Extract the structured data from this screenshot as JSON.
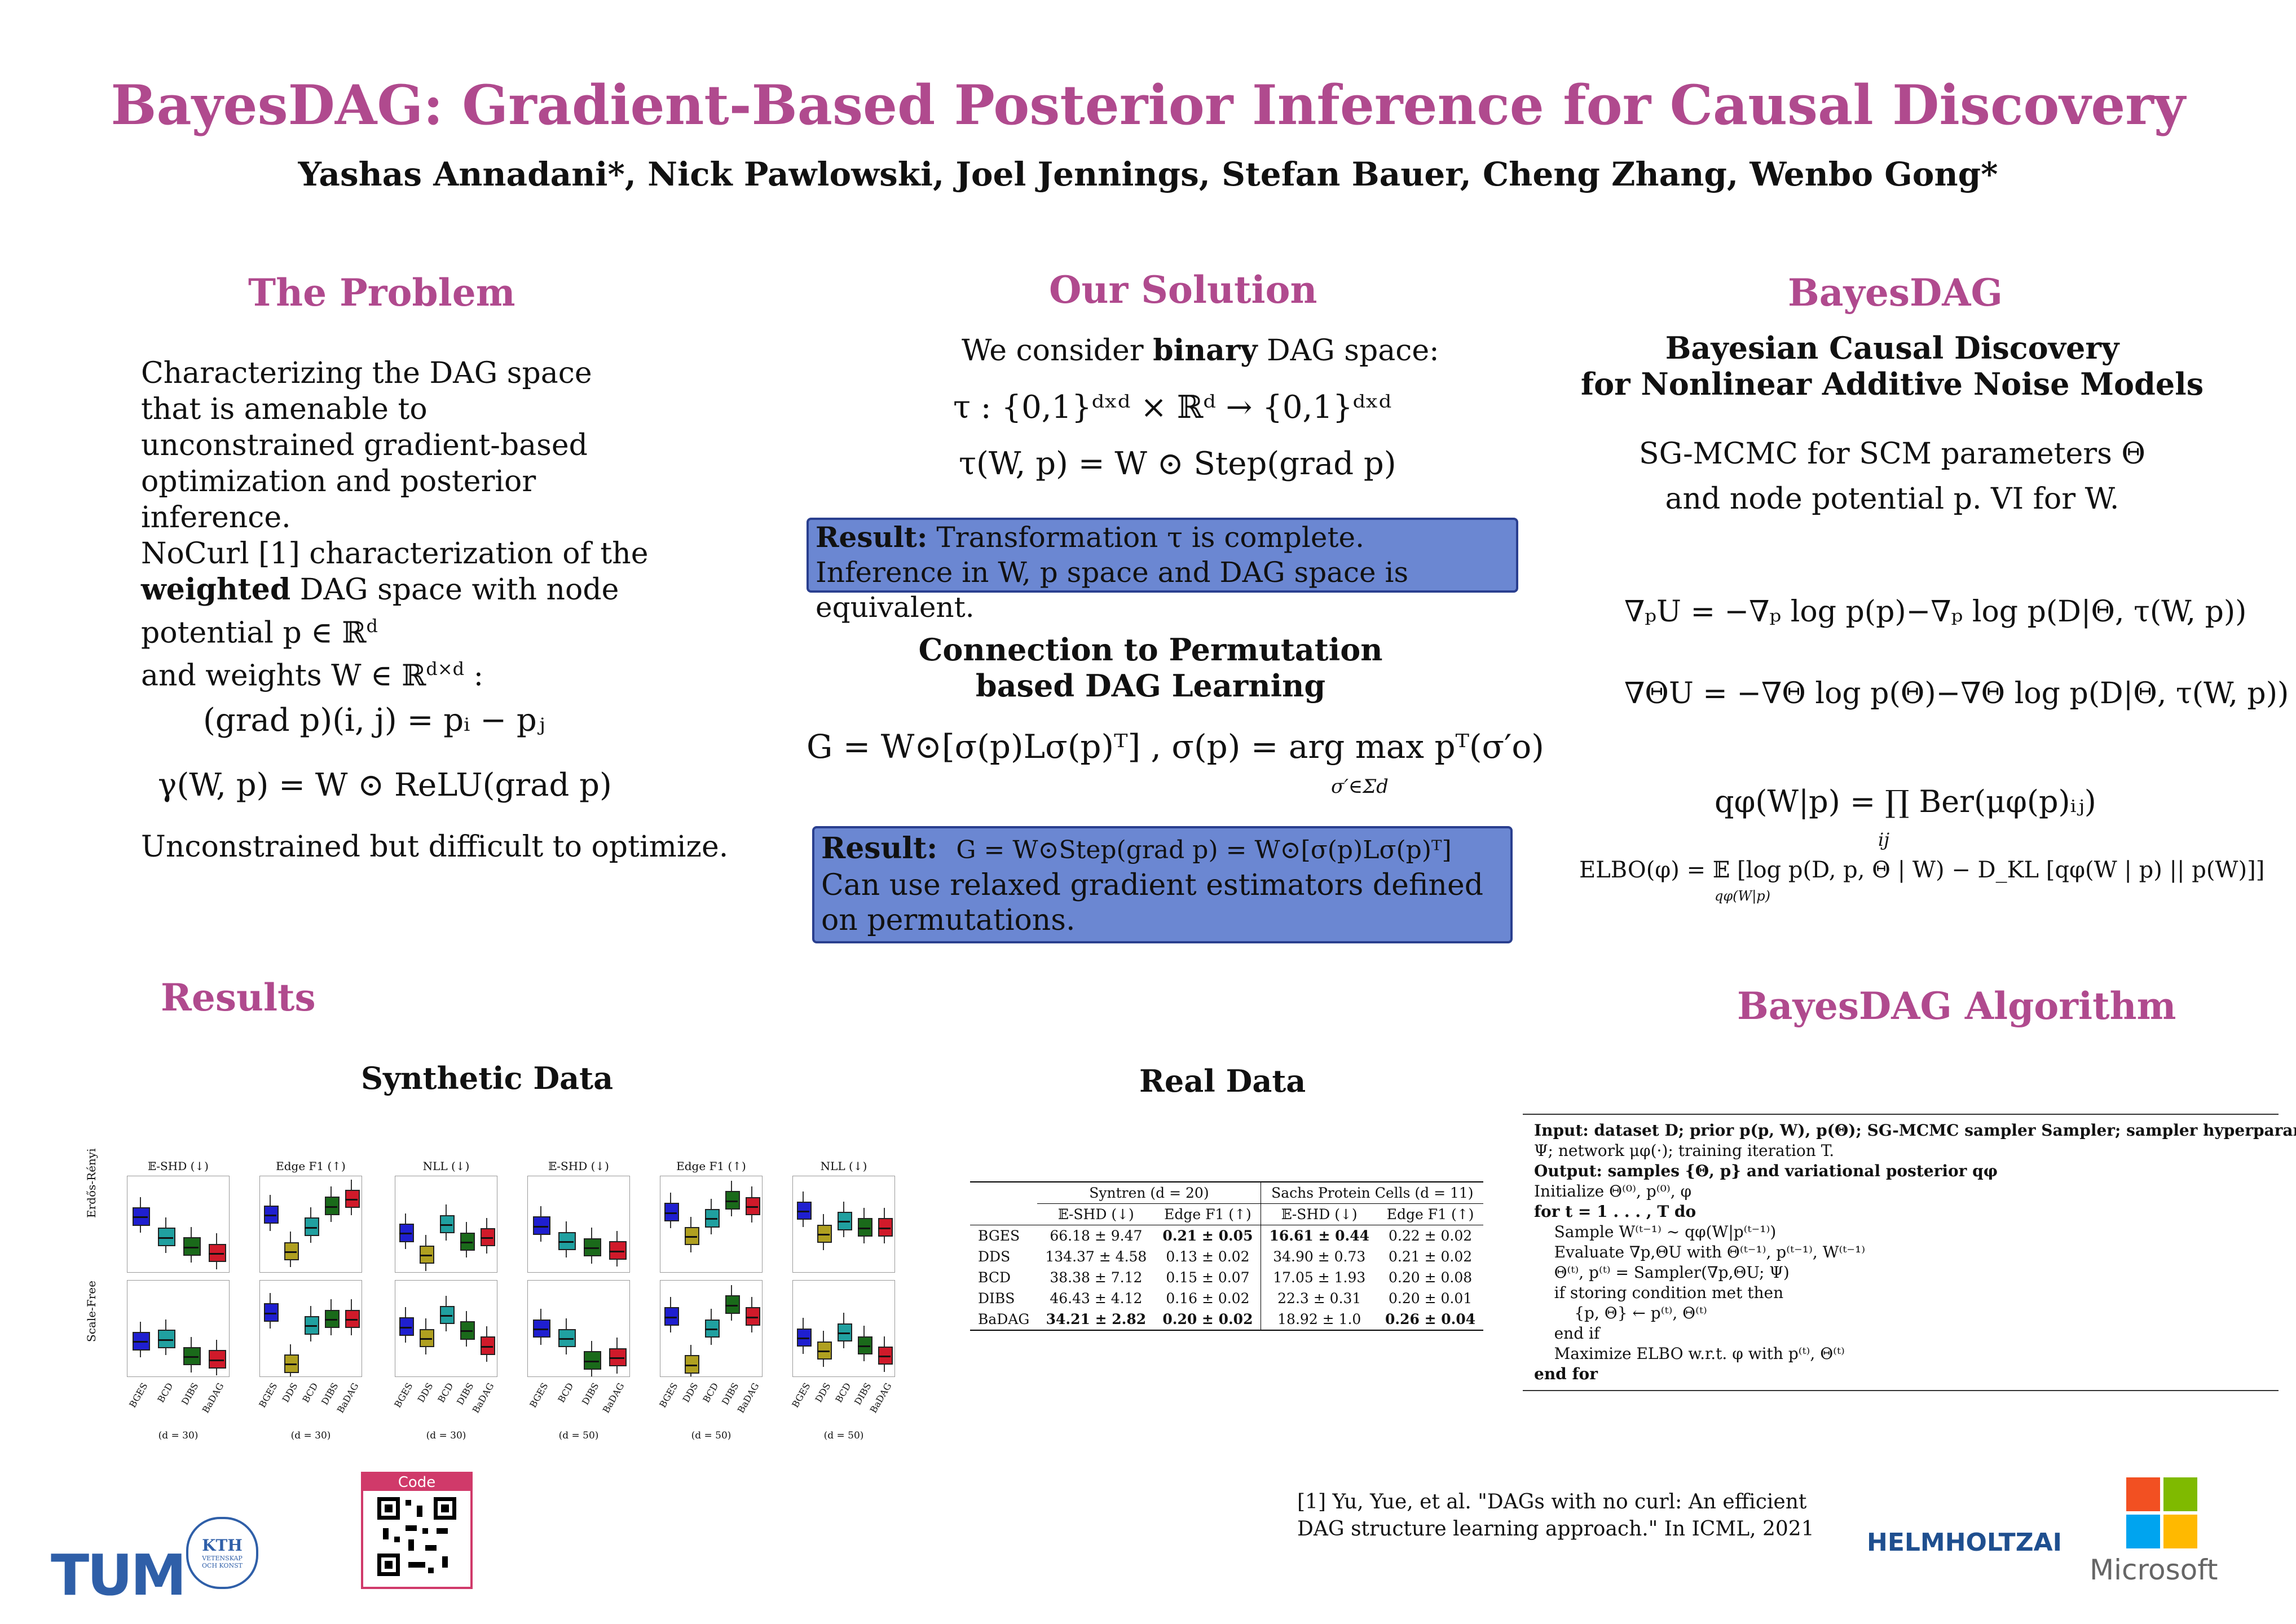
{
  "title": "BayesDAG: Gradient-Based Posterior Inference for Causal Discovery",
  "authors": "Yashas Annadani*, Nick Pawlowski, Joel Jennings, Stefan Bauer, Cheng Zhang, Wenbo Gong*",
  "problem": {
    "heading": "The Problem",
    "p1": "Characterizing the DAG space that is amenable to unconstrained gradient-based optimization and posterior inference.",
    "p2a": "NoCurl [1] characterization of the",
    "p2b_bold": "weighted",
    "p2c": "DAG space with node",
    "p2d": "potential p ∈ ℝ",
    "p2d_sup": "d",
    "p2e": "and weights W ∈ ℝ",
    "p2e_sup": "d×d",
    "p2e_tail": " :",
    "eq1": "(grad p)(i, j) = pᵢ − pⱼ",
    "eq2": "γ(W, p) = W ⊙ ReLU(grad p)",
    "p3": "Unconstrained but difficult to optimize."
  },
  "solution": {
    "heading": "Our Solution",
    "intro_a": "We consider",
    "intro_bold": "binary",
    "intro_b": "DAG space:",
    "eq1": "τ : {0,1}ᵈˣᵈ × ℝᵈ → {0,1}ᵈˣᵈ",
    "eq2": "τ(W, p) = W ⊙ Step(grad p)",
    "result1_label": "Result:",
    "result1_text": "Transformation τ is complete. Inference in W, p space and DAG space is equivalent.",
    "conn_title_1": "Connection to Permutation",
    "conn_title_2": "based DAG Learning",
    "eq3": "G = W⊙[σ(p)Lσ(p)ᵀ] , σ(p) = arg max pᵀ(σ′o)",
    "eq3_sub": "σ′∈Σd",
    "result2_label": "Result:",
    "result2_eq": "G = W⊙Step(grad p) = W⊙[σ(p)Lσ(p)ᵀ]",
    "result2_text": "Can use relaxed gradient estimators defined on permutations."
  },
  "bayesdag": {
    "heading": "BayesDAG",
    "sub1": "Bayesian Causal Discovery",
    "sub2": "for Nonlinear Additive Noise Models",
    "text1": "SG-MCMC for SCM parameters Θ",
    "text2": "and node potential p. VI for W.",
    "eq1": "∇ₚU = −∇ₚ log p(p)−∇ₚ log p(D|Θ, τ(W, p))",
    "eq2": "∇ΘU = −∇Θ log p(Θ)−∇Θ log p(D|Θ, τ(W, p))",
    "eq3": "qφ(W|p) = ∏ Ber(μφ(p)ᵢⱼ)",
    "eq3_sub": "ij",
    "eq4": "ELBO(φ) = 𝔼 [log p(D, p, Θ | W) − D_KL [qφ(W | p) || p(W)]]",
    "eq4_sub": "qφ(W|p)"
  },
  "results": {
    "heading": "Results",
    "synthetic_title": "Synthetic Data",
    "real_title": "Real Data"
  },
  "chart_data": [
    {
      "type": "box",
      "title": "𝔼-SHD (↓)",
      "row": "Erdős-Rényi",
      "d": "(d = 30)",
      "categories": [
        "BGES",
        "BCD",
        "DIBS",
        "BaDAG"
      ],
      "medians": [
        112,
        80,
        65,
        55
      ],
      "ylim": [
        25,
        175
      ]
    },
    {
      "type": "box",
      "title": "Edge F1 (↑)",
      "row": "Erdős-Rényi",
      "d": "(d = 30)",
      "categories": [
        "BGES",
        "DDS",
        "BCD",
        "DIBS",
        "BaDAG"
      ],
      "medians": [
        0.43,
        0.22,
        0.36,
        0.48,
        0.52
      ],
      "ylim": [
        0.1,
        0.65
      ]
    },
    {
      "type": "box",
      "title": "NLL (↓)",
      "row": "Erdős-Rényi",
      "d": "(d = 30)",
      "categories": [
        "BGES",
        "DDS",
        "BCD",
        "DIBS",
        "BaDAG"
      ],
      "medians": [
        47,
        42,
        49,
        45,
        46
      ],
      "ylim": [
        38,
        60
      ]
    },
    {
      "type": "box",
      "title": "𝔼-SHD (↓)",
      "row": "Erdős-Rényi",
      "d": "(d = 50)",
      "categories": [
        "BGES",
        "BCD",
        "DIBS",
        "BaDAG"
      ],
      "medians": [
        150,
        100,
        80,
        70
      ],
      "ylim": [
        0,
        310
      ]
    },
    {
      "type": "box",
      "title": "Edge F1 (↑)",
      "row": "Erdős-Rényi",
      "d": "(d = 50)",
      "categories": [
        "BGES",
        "DDS",
        "BCD",
        "DIBS",
        "BaDAG"
      ],
      "medians": [
        0.5,
        0.3,
        0.45,
        0.6,
        0.55
      ],
      "ylim": [
        0,
        0.8
      ]
    },
    {
      "type": "box",
      "title": "NLL (↓)",
      "row": "Erdős-Rényi",
      "d": "(d = 50)",
      "categories": [
        "BGES",
        "DDS",
        "BCD",
        "DIBS",
        "BaDAG"
      ],
      "medians": [
        78,
        60,
        70,
        65,
        65
      ],
      "ylim": [
        30,
        105
      ]
    },
    {
      "type": "box",
      "title": "",
      "row": "Scale-Free",
      "d": "(d = 30)",
      "categories": [
        "BGES",
        "BCD",
        "DIBS",
        "BaDAG"
      ],
      "medians": [
        50,
        52,
        35,
        32
      ],
      "ylim": [
        15,
        110
      ]
    },
    {
      "type": "box",
      "title": "",
      "row": "Scale-Free",
      "d": "(d = 30)",
      "categories": [
        "BGES",
        "DDS",
        "BCD",
        "DIBS",
        "BaDAG"
      ],
      "medians": [
        0.6,
        0.2,
        0.5,
        0.55,
        0.55
      ],
      "ylim": [
        0.1,
        0.85
      ]
    },
    {
      "type": "box",
      "title": "",
      "row": "Scale-Free",
      "d": "(d = 30)",
      "categories": [
        "BGES",
        "DDS",
        "BCD",
        "DIBS",
        "BaDAG"
      ],
      "medians": [
        43,
        40,
        46,
        42,
        38
      ],
      "ylim": [
        30,
        55
      ]
    },
    {
      "type": "box",
      "title": "",
      "row": "Scale-Free",
      "d": "(d = 50)",
      "categories": [
        "BGES",
        "BCD",
        "DIBS",
        "BaDAG"
      ],
      "medians": [
        125,
        110,
        75,
        80
      ],
      "ylim": [
        50,
        200
      ]
    },
    {
      "type": "box",
      "title": "",
      "row": "Scale-Free",
      "d": "(d = 50)",
      "categories": [
        "BGES",
        "DDS",
        "BCD",
        "DIBS",
        "BaDAG"
      ],
      "medians": [
        0.5,
        0.1,
        0.4,
        0.6,
        0.5
      ],
      "ylim": [
        0,
        0.8
      ]
    },
    {
      "type": "box",
      "title": "",
      "row": "Scale-Free",
      "d": "(d = 50)",
      "categories": [
        "BGES",
        "DDS",
        "BCD",
        "DIBS",
        "BaDAG"
      ],
      "medians": [
        73,
        68,
        75,
        70,
        66
      ],
      "ylim": [
        58,
        95
      ]
    }
  ],
  "table": {
    "group1": "Syntren (d = 20)",
    "group2": "Sachs Protein Cells (d = 11)",
    "cols": [
      "𝔼-SHD (↓)",
      "Edge F1 (↑)",
      "𝔼-SHD (↓)",
      "Edge F1 (↑)"
    ],
    "rows": [
      {
        "name": "BGES",
        "v": [
          "66.18 ± 9.47",
          "0.21 ± 0.05",
          "16.61 ± 0.44",
          "0.22 ± 0.02"
        ],
        "b": [
          false,
          true,
          true,
          false
        ]
      },
      {
        "name": "DDS",
        "v": [
          "134.37 ± 4.58",
          "0.13 ± 0.02",
          "34.90 ± 0.73",
          "0.21 ± 0.02"
        ],
        "b": [
          false,
          false,
          false,
          false
        ]
      },
      {
        "name": "BCD",
        "v": [
          "38.38 ± 7.12",
          "0.15 ± 0.07",
          "17.05 ± 1.93",
          "0.20 ± 0.08"
        ],
        "b": [
          false,
          false,
          false,
          false
        ]
      },
      {
        "name": "DIBS",
        "v": [
          "46.43 ± 4.12",
          "0.16 ± 0.02",
          "22.3 ± 0.31",
          "0.20 ± 0.01"
        ],
        "b": [
          false,
          false,
          false,
          false
        ]
      },
      {
        "name": "BaDAG",
        "v": [
          "34.21 ± 2.82",
          "0.20 ± 0.02",
          "18.92 ± 1.0",
          "0.26 ± 0.04"
        ],
        "b": [
          true,
          true,
          false,
          true
        ]
      }
    ]
  },
  "algorithm": {
    "heading": "BayesDAG Algorithm",
    "lines": [
      "Input: dataset D; prior p(p, W), p(Θ); SG-MCMC sampler Sampler; sampler hyperparameters",
      "Ψ; network μφ(·); training iteration T.",
      "Output: samples {Θ, p} and variational posterior qφ",
      "Initialize Θ⁽⁰⁾, p⁽⁰⁾, φ",
      "for t = 1 . . . , T do",
      "    Sample W⁽ᵗ⁻¹⁾ ∼ qφ(W|p⁽ᵗ⁻¹⁾)",
      "    Evaluate ∇p,ΘU with Θ⁽ᵗ⁻¹⁾, p⁽ᵗ⁻¹⁾, W⁽ᵗ⁻¹⁾",
      "    Θ⁽ᵗ⁾, p⁽ᵗ⁾ = Sampler(∇p,ΘU; Ψ)",
      "    if storing condition met then",
      "        {p, Θ} ← p⁽ᵗ⁾, Θ⁽ᵗ⁾",
      "    end if",
      "    Maximize ELBO w.r.t. φ with p⁽ᵗ⁾, Θ⁽ᵗ⁾",
      "end for"
    ]
  },
  "footer": {
    "reference_1": "[1] Yu, Yue, et al. \"DAGs with no curl: An efficient",
    "reference_2": "DAG structure learning approach.\" In ICML, 2021",
    "code_label": "Code",
    "tum": "TUM",
    "kth": "KTH",
    "kth_sub1": "VETENSKAP",
    "kth_sub2": "OCH KONST",
    "helmholtz": "HELMHOLTZAI",
    "microsoft": "Microsoft"
  },
  "colors": {
    "accent": "#b04a8e",
    "box_fill": "#6b87d2",
    "bges": "#1f1fd0",
    "dds": "#b0a020",
    "bcd": "#20a0a0",
    "dibs": "#1a6a1a",
    "badag": "#d01a2a"
  }
}
